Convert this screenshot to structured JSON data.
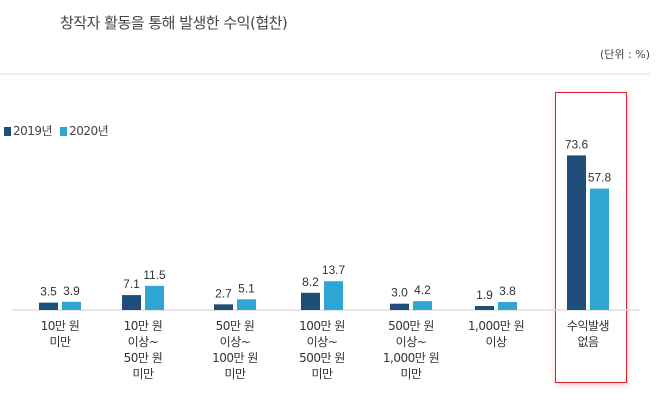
{
  "chart_data": {
    "type": "bar",
    "title": "창작자 활동을 통해 발생한 수익(협찬)",
    "unit_label": "(단위 : %)",
    "categories": [
      "10만 원\n미만",
      "10만 원\n이상~\n50만 원\n미만",
      "50만 원\n이상~\n100만 원\n미만",
      "100만 원\n이상~\n500만 원\n미만",
      "500만 원\n이상~\n1,000만 원\n미만",
      "1,000만 원\n이상",
      "수익발생\n없음"
    ],
    "series": [
      {
        "name": "2019년",
        "color": "#1f4e79",
        "values": [
          3.5,
          7.1,
          2.7,
          8.2,
          3.0,
          1.9,
          73.6
        ],
        "labels": [
          "3.5",
          "7.1",
          "2.7",
          "8.2",
          "3.0",
          "1.9",
          "73.6"
        ]
      },
      {
        "name": "2020년",
        "color": "#2fa5d4",
        "values": [
          3.9,
          11.5,
          5.1,
          13.7,
          4.2,
          3.8,
          57.8
        ],
        "labels": [
          "3.9",
          "11.5",
          "5.1",
          "13.7",
          "4.2",
          "3.8",
          "57.8"
        ]
      }
    ],
    "legend_position": "top-left",
    "highlighted_category": "수익발생\n없음",
    "highlight_color": "#d8232a",
    "grid": false,
    "ylim": [
      0,
      80
    ]
  }
}
